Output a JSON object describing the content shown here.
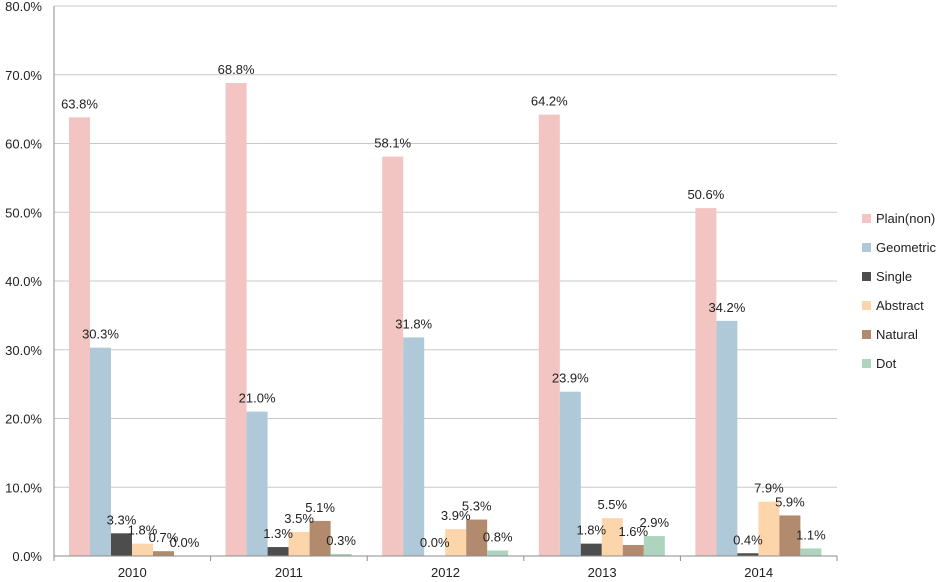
{
  "chart_data": {
    "type": "bar",
    "title": "",
    "xlabel": "",
    "ylabel": "",
    "categories": [
      "2010",
      "2011",
      "2012",
      "2013",
      "2014"
    ],
    "ylim": [
      0,
      80
    ],
    "yticks": [
      "0.0%",
      "10.0%",
      "20.0%",
      "30.0%",
      "40.0%",
      "50.0%",
      "60.0%",
      "70.0%",
      "80.0%"
    ],
    "grid": true,
    "legend_position": "right",
    "series": [
      {
        "name": "Plain(non)",
        "color": "#f2c4c2",
        "values": [
          63.8,
          68.8,
          58.1,
          64.2,
          50.6
        ],
        "labels": [
          "63.8%",
          "68.8%",
          "58.1%",
          "64.2%",
          "50.6%"
        ]
      },
      {
        "name": "Geometric",
        "color": "#b0c9d9",
        "values": [
          30.3,
          21.0,
          31.8,
          23.9,
          34.2
        ],
        "labels": [
          "30.3%",
          "21.0%",
          "31.8%",
          "23.9%",
          "34.2%"
        ]
      },
      {
        "name": "Single",
        "color": "#4d4d4d",
        "values": [
          3.3,
          1.3,
          0.0,
          1.8,
          0.4
        ],
        "labels": [
          "3.3%",
          "1.3%",
          "0.0%",
          "1.8%",
          "0.4%"
        ]
      },
      {
        "name": "Abstract",
        "color": "#fcd5aa",
        "values": [
          1.8,
          3.5,
          3.9,
          5.5,
          7.9
        ],
        "labels": [
          "1.8%",
          "3.5%",
          "3.9%",
          "5.5%",
          "7.9%"
        ]
      },
      {
        "name": "Natural",
        "color": "#b28a6e",
        "values": [
          0.7,
          5.1,
          5.3,
          1.6,
          5.9
        ],
        "labels": [
          "0.7%",
          "5.1%",
          "5.3%",
          "1.6%",
          "5.9%"
        ]
      },
      {
        "name": "Dot",
        "color": "#aed4bf",
        "values": [
          0.0,
          0.3,
          0.8,
          2.9,
          1.1
        ],
        "labels": [
          "0.0%",
          "0.3%",
          "0.8%",
          "2.9%",
          "1.1%"
        ]
      }
    ]
  }
}
